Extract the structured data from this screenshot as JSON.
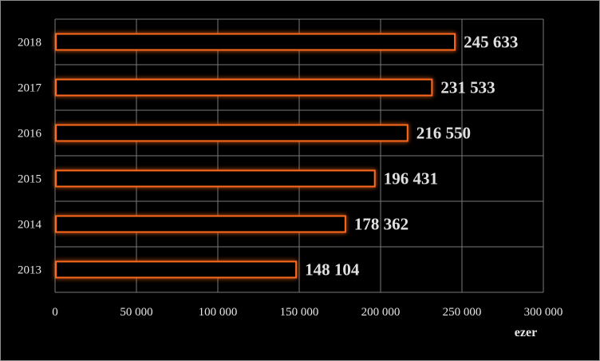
{
  "chart_data": {
    "type": "bar",
    "orientation": "horizontal",
    "categories": [
      "2018",
      "2017",
      "2016",
      "2015",
      "2014",
      "2013"
    ],
    "values": [
      245633,
      231533,
      216550,
      196431,
      178362,
      148104
    ],
    "data_labels": [
      "245 633",
      "231 533",
      "216 550",
      "196 431",
      "178 362",
      "148 104"
    ],
    "xlim": [
      0,
      300000
    ],
    "x_ticks": [
      0,
      50000,
      100000,
      150000,
      200000,
      250000,
      300000
    ],
    "x_tick_labels": [
      "0",
      "50 000",
      "100 000",
      "150 000",
      "200 000",
      "250 000",
      "300 000"
    ],
    "xlabel": "ezer",
    "title": "",
    "ylabel": "",
    "grid": true,
    "colors": {
      "background": "#000000",
      "bar_fill": "#000000",
      "bar_outline": "#ff6a1a",
      "bar_glow": "#c8460f",
      "grid": "#7a7a7a",
      "text": "#e6e6e6"
    }
  }
}
